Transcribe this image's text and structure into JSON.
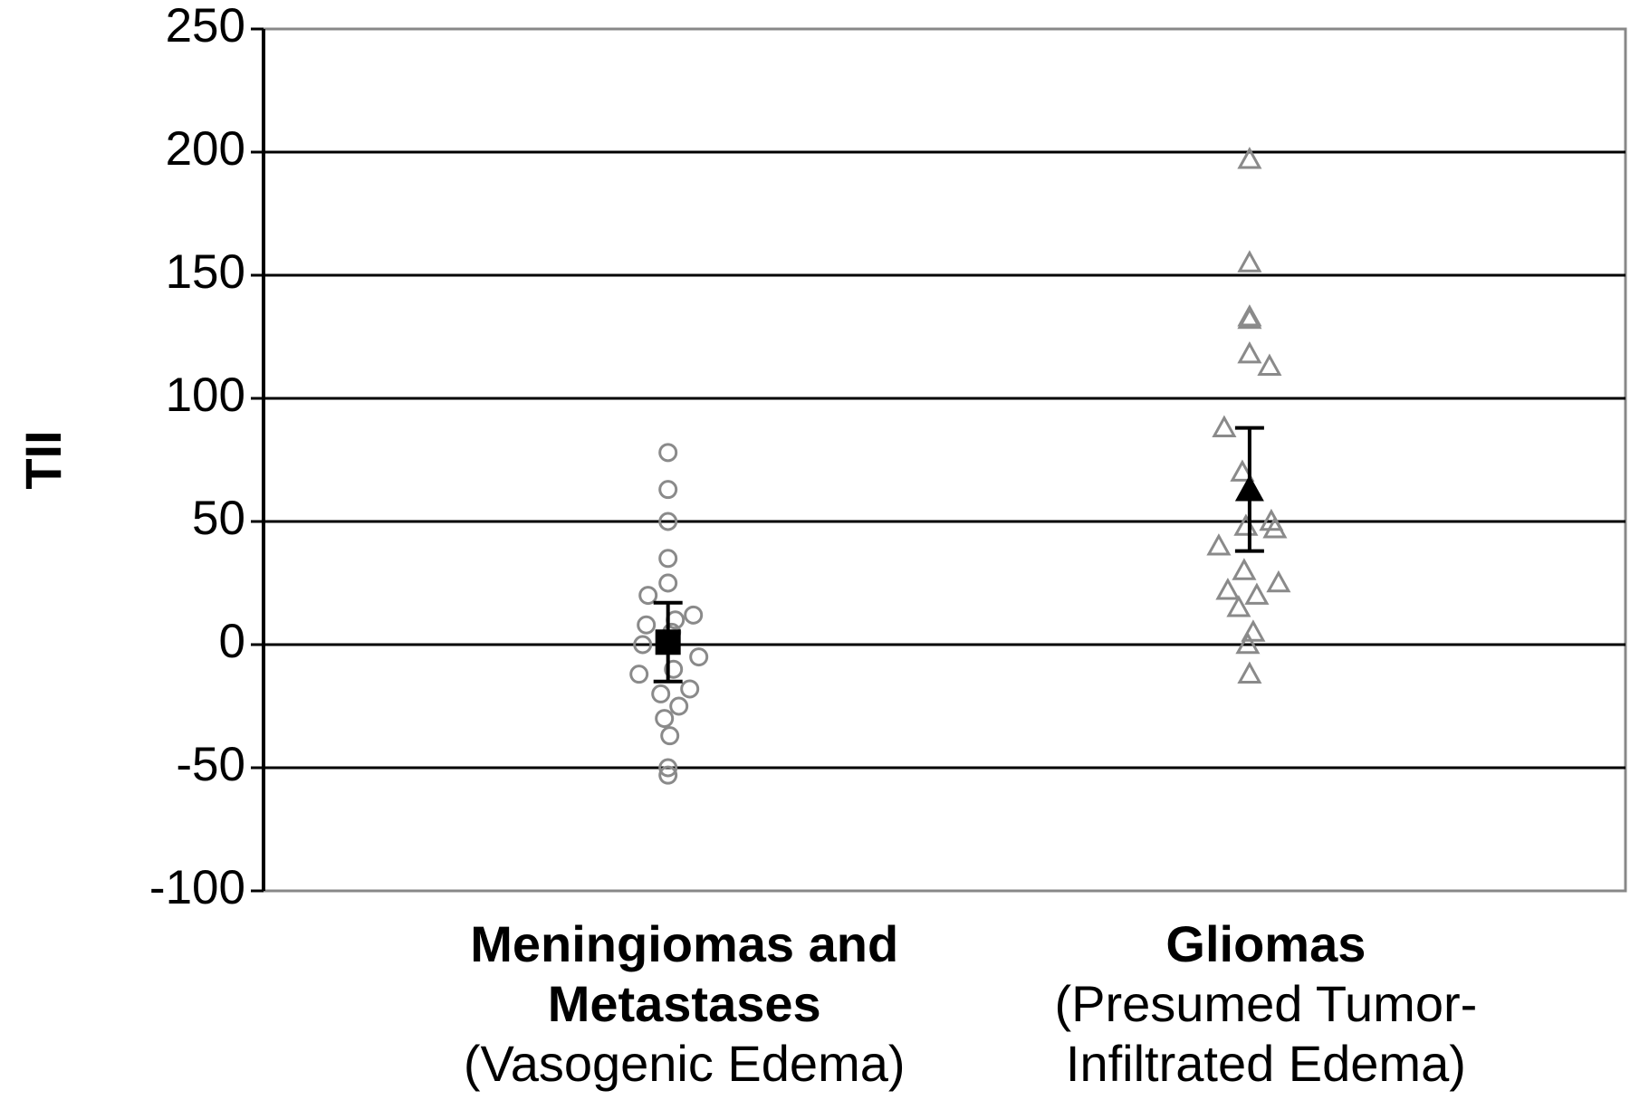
{
  "chart_data": {
    "type": "strip",
    "y_label": "TII",
    "categories": [
      [
        "Meningiomas and",
        "Metastases"
      ],
      [
        "Gliomas"
      ]
    ],
    "category_notes": [
      [
        "(Vasogenic Edema)"
      ],
      [
        "(Presumed Tumor-",
        "Infiltrated Edema)"
      ]
    ],
    "groups": [
      {
        "marker": "circle",
        "color": "#8a8a8a",
        "values": [
          78,
          63,
          50,
          35,
          25,
          20,
          12,
          10,
          8,
          5,
          0,
          -5,
          -10,
          -12,
          -18,
          -20,
          -25,
          -30,
          -37,
          -50,
          -53
        ]
      },
      {
        "marker": "triangle",
        "color": "#8a8a8a",
        "values": [
          197,
          155,
          133,
          132,
          118,
          113,
          88,
          70,
          50,
          48,
          47,
          40,
          30,
          25,
          22,
          20,
          15,
          5,
          0,
          -12
        ]
      }
    ],
    "means": [
      1,
      63
    ],
    "errors": [
      16,
      25
    ],
    "mean_color": "#000000",
    "ylim": [
      -100,
      250
    ],
    "yticks": [
      -100,
      -50,
      0,
      50,
      100,
      150,
      200,
      250
    ],
    "grid": true
  }
}
